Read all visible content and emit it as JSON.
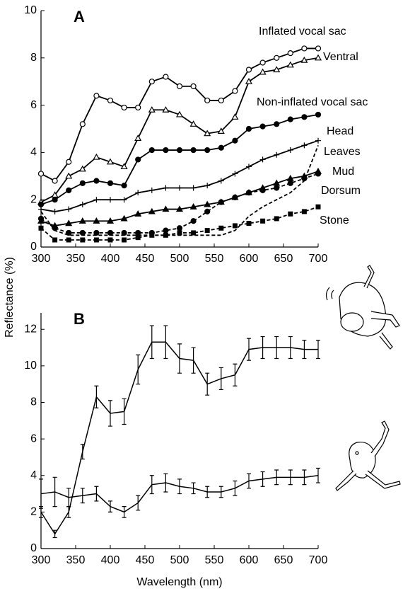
{
  "chart_data": [
    {
      "type": "line",
      "panel_label": "A",
      "ylabel": "Reflectance  (%)",
      "x": [
        300,
        320,
        340,
        360,
        380,
        400,
        420,
        440,
        460,
        480,
        500,
        520,
        540,
        560,
        580,
        600,
        620,
        640,
        660,
        680,
        700
      ],
      "xlim": [
        300,
        700
      ],
      "xticks": [
        300,
        350,
        400,
        450,
        500,
        550,
        600,
        650,
        700
      ],
      "ylim": [
        0,
        10
      ],
      "yticks": [
        0,
        2,
        4,
        6,
        8,
        10
      ],
      "series": [
        {
          "name": "Inflated vocal sac",
          "color": "#000000",
          "marker": "open-circle",
          "dash": false,
          "values": [
            3.1,
            2.8,
            3.6,
            5.2,
            6.4,
            6.2,
            5.9,
            5.9,
            7.0,
            7.2,
            6.8,
            6.8,
            6.2,
            6.2,
            6.6,
            7.5,
            7.8,
            8.0,
            8.2,
            8.4,
            8.4
          ]
        },
        {
          "name": "Ventral",
          "color": "#000000",
          "marker": "open-triangle",
          "dash": false,
          "values": [
            1.9,
            2.2,
            3.0,
            3.3,
            3.8,
            3.6,
            3.4,
            4.6,
            5.8,
            5.8,
            5.6,
            5.2,
            4.8,
            4.9,
            5.5,
            7.0,
            7.4,
            7.5,
            7.7,
            7.9,
            8.0
          ]
        },
        {
          "name": "Non-inflated vocal sac",
          "color": "#000000",
          "marker": "filled-circle",
          "dash": false,
          "values": [
            1.8,
            2.0,
            2.4,
            2.7,
            2.8,
            2.7,
            2.6,
            3.7,
            4.1,
            4.1,
            4.1,
            4.1,
            4.1,
            4.2,
            4.5,
            5.0,
            5.1,
            5.2,
            5.4,
            5.5,
            5.6
          ]
        },
        {
          "name": "Head",
          "color": "#000000",
          "marker": "plus",
          "dash": false,
          "values": [
            1.6,
            1.5,
            1.6,
            1.8,
            2.0,
            2.0,
            2.0,
            2.3,
            2.4,
            2.5,
            2.5,
            2.5,
            2.6,
            2.8,
            3.1,
            3.4,
            3.7,
            3.9,
            4.1,
            4.3,
            4.5
          ]
        },
        {
          "name": "Leaves",
          "color": "#000000",
          "marker": "none",
          "dash": true,
          "values": [
            1.5,
            0.7,
            0.5,
            0.5,
            0.5,
            0.5,
            0.5,
            0.5,
            0.5,
            0.5,
            0.5,
            0.5,
            0.5,
            0.5,
            0.7,
            1.3,
            1.7,
            2.0,
            2.3,
            2.8,
            4.3
          ]
        },
        {
          "name": "Mud",
          "color": "#000000",
          "marker": "filled-circle",
          "dash": true,
          "values": [
            1.2,
            0.8,
            0.6,
            0.6,
            0.6,
            0.6,
            0.6,
            0.6,
            0.6,
            0.7,
            0.8,
            1.1,
            1.5,
            1.9,
            2.1,
            2.3,
            2.4,
            2.5,
            2.7,
            2.9,
            3.1
          ]
        },
        {
          "name": "Dorsum",
          "color": "#000000",
          "marker": "filled-triangle",
          "dash": false,
          "values": [
            1.1,
            0.9,
            1.0,
            1.1,
            1.1,
            1.1,
            1.2,
            1.4,
            1.5,
            1.6,
            1.6,
            1.7,
            1.8,
            1.9,
            2.1,
            2.3,
            2.5,
            2.7,
            2.9,
            3.0,
            3.2
          ]
        },
        {
          "name": "Stone",
          "color": "#000000",
          "marker": "filled-square",
          "dash": true,
          "values": [
            0.8,
            0.3,
            0.3,
            0.3,
            0.3,
            0.3,
            0.3,
            0.4,
            0.5,
            0.5,
            0.6,
            0.6,
            0.7,
            0.8,
            0.9,
            1.0,
            1.1,
            1.2,
            1.4,
            1.5,
            1.7
          ]
        }
      ]
    },
    {
      "type": "errorbar",
      "panel_label": "B",
      "xlabel": "Wavelength  (nm)",
      "x": [
        300,
        320,
        340,
        360,
        380,
        400,
        420,
        440,
        460,
        480,
        500,
        520,
        540,
        560,
        580,
        600,
        620,
        640,
        660,
        680,
        700
      ],
      "xlim": [
        300,
        700
      ],
      "xticks": [
        300,
        350,
        400,
        450,
        500,
        550,
        600,
        650,
        700
      ],
      "ylim": [
        0,
        12.9
      ],
      "yticks": [
        0,
        2,
        4,
        6,
        8,
        10,
        12
      ],
      "series": [
        {
          "color": "#000000",
          "values": [
            2.0,
            0.8,
            2.0,
            5.3,
            8.3,
            7.4,
            7.5,
            9.8,
            11.3,
            11.3,
            10.4,
            10.3,
            9.0,
            9.3,
            9.5,
            10.9,
            11.0,
            11.0,
            11.0,
            10.9,
            10.9
          ],
          "errors": [
            0.3,
            0.2,
            0.3,
            0.4,
            0.6,
            0.7,
            0.7,
            0.8,
            0.9,
            0.9,
            0.8,
            0.7,
            0.6,
            0.6,
            0.6,
            0.6,
            0.6,
            0.6,
            0.6,
            0.5,
            0.5
          ]
        },
        {
          "color": "#000000",
          "values": [
            3.0,
            3.1,
            2.8,
            2.9,
            3.0,
            2.3,
            2.0,
            2.5,
            3.5,
            3.6,
            3.4,
            3.3,
            3.1,
            3.1,
            3.3,
            3.7,
            3.8,
            3.9,
            3.9,
            3.9,
            4.0
          ],
          "errors": [
            0.8,
            0.8,
            0.5,
            0.4,
            0.4,
            0.3,
            0.3,
            0.4,
            0.5,
            0.5,
            0.4,
            0.3,
            0.3,
            0.3,
            0.4,
            0.4,
            0.4,
            0.4,
            0.4,
            0.4,
            0.4
          ]
        }
      ]
    }
  ]
}
